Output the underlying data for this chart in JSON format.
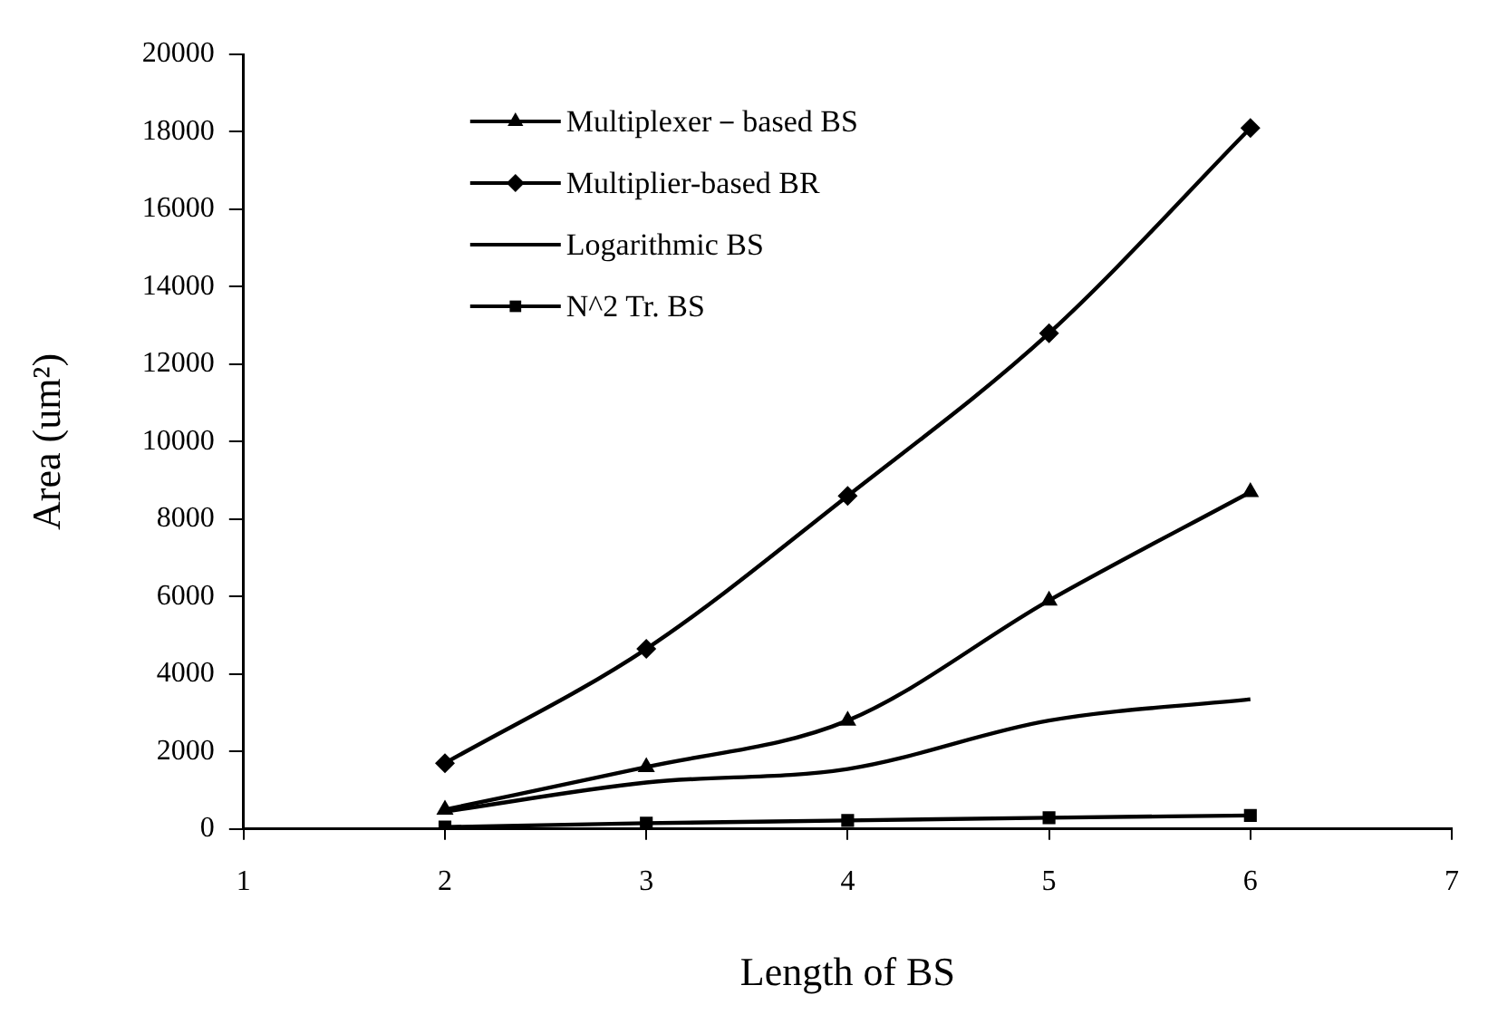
{
  "chart_data": {
    "type": "line",
    "xlabel": "Length of BS",
    "ylabel": "Area (um²)",
    "x": [
      2,
      3,
      4,
      5,
      6
    ],
    "series": [
      {
        "name": "Multiplexer－based BS",
        "color": "#000000",
        "marker": "triangle",
        "values": [
          500,
          1600,
          2800,
          5900,
          8700
        ]
      },
      {
        "name": "Multiplier-based BR",
        "color": "#000000",
        "marker": "diamond",
        "values": [
          1700,
          4650,
          8600,
          12800,
          18100
        ]
      },
      {
        "name": "Logarithmic BS",
        "color": "#000000",
        "marker": "none",
        "values": [
          450,
          1200,
          1550,
          2800,
          3350
        ]
      },
      {
        "name": "N^2 Tr. BS",
        "color": "#000000",
        "marker": "square",
        "values": [
          50,
          150,
          220,
          290,
          350
        ]
      }
    ],
    "xlim": [
      1,
      7
    ],
    "xticks": [
      1,
      2,
      3,
      4,
      5,
      6,
      7
    ],
    "ylim": [
      0,
      20000
    ],
    "yticks": [
      0,
      2000,
      4000,
      6000,
      8000,
      10000,
      12000,
      14000,
      16000,
      18000,
      20000
    ],
    "grid": false,
    "legend": "top left",
    "line_style": "solid"
  }
}
